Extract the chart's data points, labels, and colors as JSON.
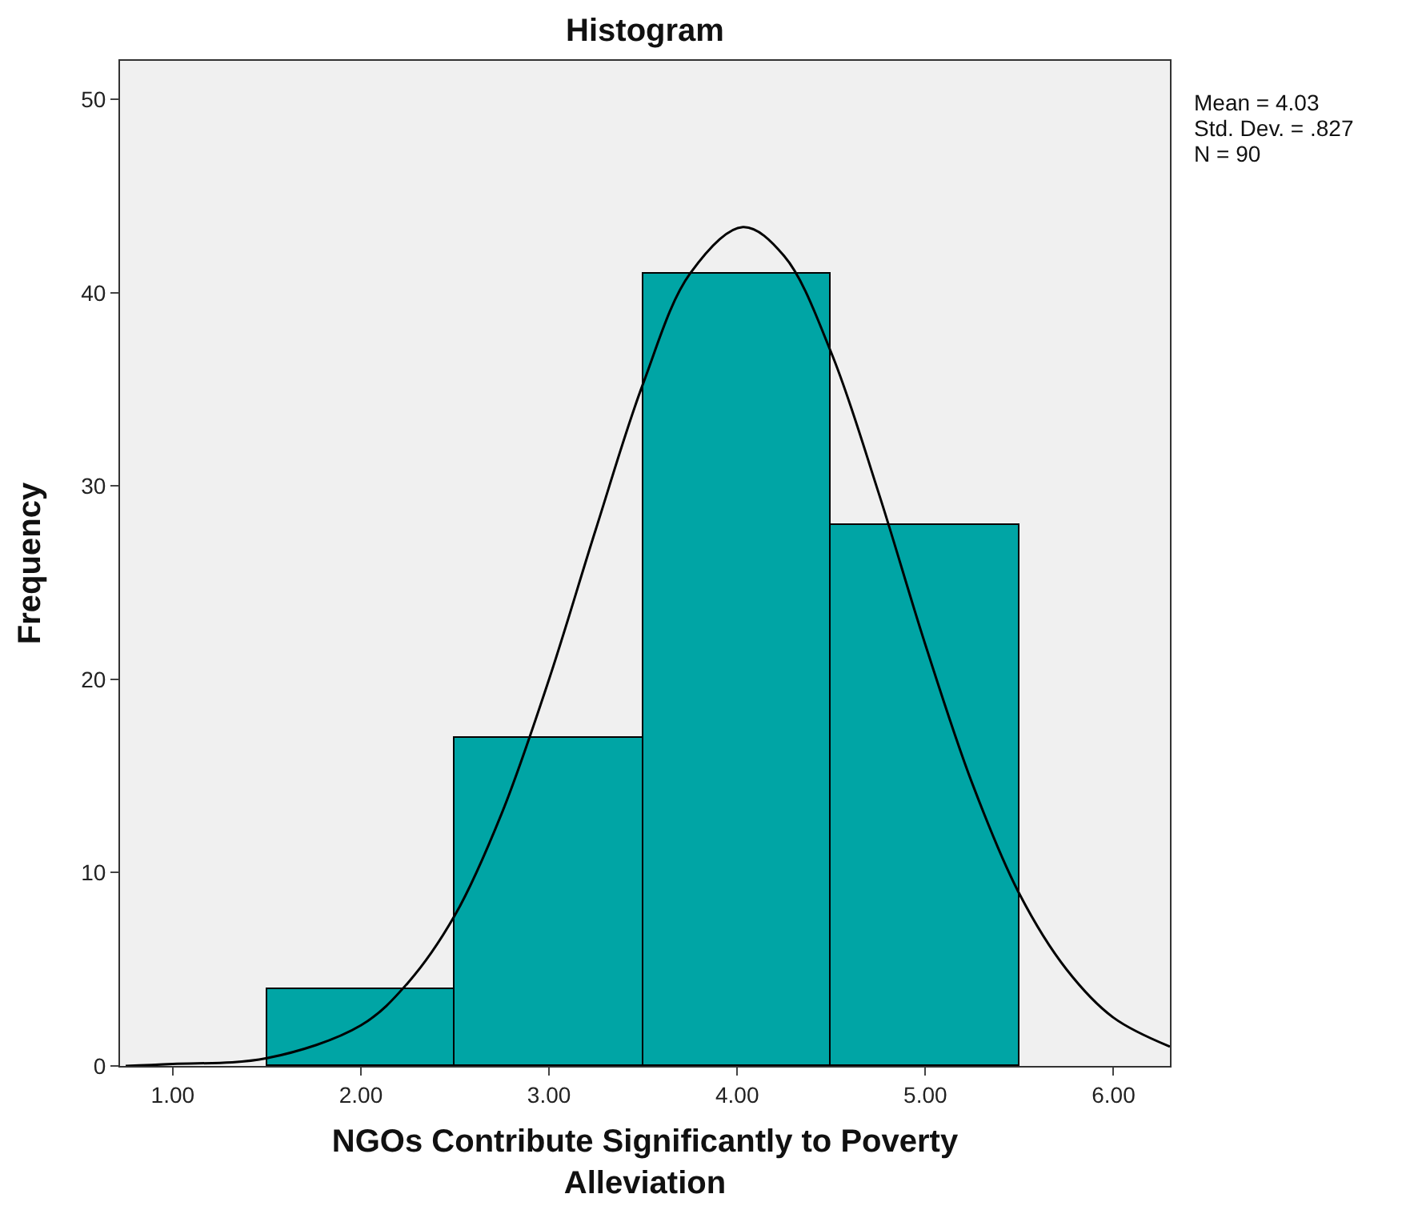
{
  "chart_data": {
    "type": "histogram",
    "title": "Histogram",
    "xlabel": "NGOs Contribute Significantly to Poverty Alleviation",
    "ylabel": "Frequency",
    "bins": [
      1.5,
      2.5,
      3.5,
      4.5,
      5.5
    ],
    "values": [
      4,
      17,
      41,
      28
    ],
    "color": "#00a5a5",
    "series": [
      {
        "type": "line",
        "color": "#000000",
        "x": [
          0.75,
          1.0,
          1.5,
          2.0,
          2.25,
          2.5,
          2.75,
          3.0,
          3.25,
          3.5,
          3.75,
          4.03,
          4.25,
          4.5,
          4.75,
          5.0,
          5.25,
          5.5,
          5.75,
          6.0,
          6.3
        ],
        "values": [
          0,
          0.1,
          0.4,
          2.1,
          4.3,
          7.8,
          13.1,
          20.0,
          27.8,
          35.3,
          41.0,
          43.4,
          41.9,
          36.9,
          29.7,
          21.8,
          14.6,
          8.9,
          5.0,
          2.5,
          1.0
        ]
      }
    ],
    "xlim": [
      0.72,
      6.3
    ],
    "xticks": [
      {
        "value": 1,
        "label": "1.00"
      },
      {
        "value": 2,
        "label": "2.00"
      },
      {
        "value": 3,
        "label": "3.00"
      },
      {
        "value": 4,
        "label": "4.00"
      },
      {
        "value": 5,
        "label": "5.00"
      },
      {
        "value": 6,
        "label": "6.00"
      }
    ],
    "ylim": [
      0,
      52
    ],
    "yticks": [
      0,
      10,
      20,
      30,
      40,
      50
    ],
    "annotations": [
      "Mean = 4.03",
      "Std. Dev. = .827",
      "N = 90"
    ],
    "grid": false
  }
}
